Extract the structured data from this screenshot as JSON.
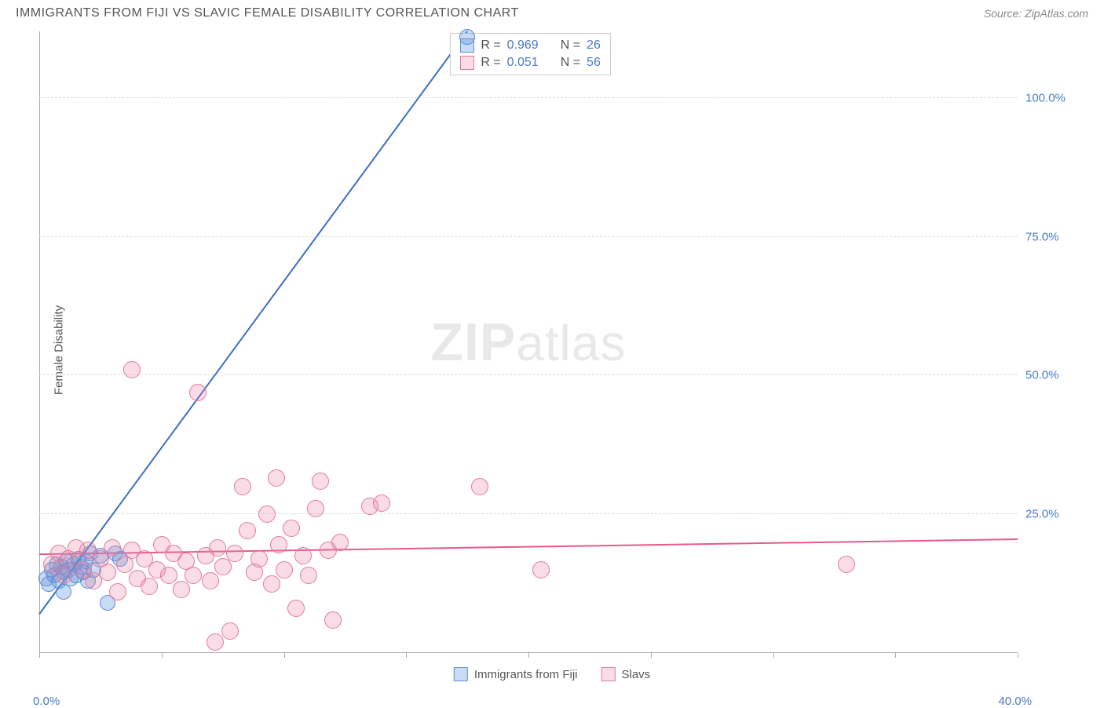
{
  "title": "IMMIGRANTS FROM FIJI VS SLAVIC FEMALE DISABILITY CORRELATION CHART",
  "source": "Source: ZipAtlas.com",
  "ylabel": "Female Disability",
  "watermark_zip": "ZIP",
  "watermark_atlas": "atlas",
  "xlim": [
    0,
    40
  ],
  "ylim": [
    0,
    112
  ],
  "x_ticks": [
    0,
    5,
    10,
    15,
    20,
    25,
    30,
    35,
    40
  ],
  "x_tick_labels": {
    "left": "0.0%",
    "right": "40.0%"
  },
  "y_gridlines": [
    25,
    50,
    75,
    100
  ],
  "y_tick_labels": [
    "25.0%",
    "50.0%",
    "75.0%",
    "100.0%"
  ],
  "colors": {
    "blue_fill": "rgba(100,150,220,0.35)",
    "blue_stroke": "#5b8fd6",
    "blue_line": "#3b6fc2",
    "pink_fill": "rgba(235,130,160,0.28)",
    "pink_stroke": "#e07a9a",
    "pink_line": "#e65a8a",
    "axis_label": "#4a7ac7",
    "text": "#555555",
    "grid": "#dddddd"
  },
  "series": [
    {
      "name": "Immigrants from Fiji",
      "color_key": "blue",
      "R": "0.969",
      "N": "26",
      "marker_radius": 10,
      "trend": {
        "x1": 0.0,
        "y1": 7.0,
        "x2": 17.5,
        "y2": 112.0
      },
      "points": [
        [
          0.3,
          13.5
        ],
        [
          0.5,
          15.0
        ],
        [
          0.6,
          14.0
        ],
        [
          0.7,
          16.0
        ],
        [
          0.8,
          13.0
        ],
        [
          0.9,
          15.5
        ],
        [
          1.0,
          14.5
        ],
        [
          1.1,
          16.5
        ],
        [
          1.2,
          15.0
        ],
        [
          1.3,
          13.5
        ],
        [
          1.4,
          16.0
        ],
        [
          1.5,
          14.0
        ],
        [
          1.6,
          17.0
        ],
        [
          1.7,
          15.5
        ],
        [
          1.8,
          14.5
        ],
        [
          1.9,
          16.5
        ],
        [
          2.0,
          13.0
        ],
        [
          2.1,
          18.0
        ],
        [
          2.2,
          15.0
        ],
        [
          2.5,
          17.5
        ],
        [
          2.8,
          9.0
        ],
        [
          3.1,
          18.0
        ],
        [
          3.3,
          17.0
        ],
        [
          1.0,
          11.0
        ],
        [
          0.4,
          12.5
        ],
        [
          17.5,
          111
        ]
      ]
    },
    {
      "name": "Slavs",
      "color_key": "pink",
      "R": "0.051",
      "N": "56",
      "marker_radius": 11,
      "trend": {
        "x1": 0.0,
        "y1": 17.8,
        "x2": 40.0,
        "y2": 20.5
      },
      "points": [
        [
          0.5,
          16.0
        ],
        [
          0.8,
          18.0
        ],
        [
          1.0,
          14.0
        ],
        [
          1.2,
          17.0
        ],
        [
          1.5,
          19.0
        ],
        [
          1.8,
          15.0
        ],
        [
          2.0,
          18.5
        ],
        [
          2.2,
          13.0
        ],
        [
          2.5,
          17.0
        ],
        [
          2.8,
          14.5
        ],
        [
          3.0,
          19.0
        ],
        [
          3.2,
          11.0
        ],
        [
          3.5,
          16.0
        ],
        [
          3.8,
          18.5
        ],
        [
          4.0,
          13.5
        ],
        [
          4.3,
          17.0
        ],
        [
          4.5,
          12.0
        ],
        [
          4.8,
          15.0
        ],
        [
          5.0,
          19.5
        ],
        [
          5.3,
          14.0
        ],
        [
          5.5,
          18.0
        ],
        [
          5.8,
          11.5
        ],
        [
          6.0,
          16.5
        ],
        [
          3.8,
          51.0
        ],
        [
          6.3,
          14.0
        ],
        [
          6.8,
          17.5
        ],
        [
          6.5,
          47.0
        ],
        [
          7.0,
          13.0
        ],
        [
          7.3,
          19.0
        ],
        [
          7.5,
          15.5
        ],
        [
          7.8,
          4.0
        ],
        [
          8.0,
          18.0
        ],
        [
          7.2,
          2.0
        ],
        [
          8.5,
          22.0
        ],
        [
          8.8,
          14.5
        ],
        [
          9.0,
          17.0
        ],
        [
          9.3,
          25.0
        ],
        [
          9.5,
          12.5
        ],
        [
          9.8,
          19.5
        ],
        [
          10.0,
          15.0
        ],
        [
          10.3,
          22.5
        ],
        [
          10.5,
          8.0
        ],
        [
          10.8,
          17.5
        ],
        [
          11.0,
          14.0
        ],
        [
          11.3,
          26.0
        ],
        [
          11.5,
          31.0
        ],
        [
          11.8,
          18.5
        ],
        [
          12.0,
          6.0
        ],
        [
          12.3,
          20.0
        ],
        [
          9.7,
          31.5
        ],
        [
          13.5,
          26.5
        ],
        [
          14.0,
          27.0
        ],
        [
          18.0,
          30.0
        ],
        [
          20.5,
          15.0
        ],
        [
          33.0,
          16.0
        ],
        [
          8.3,
          30.0
        ]
      ]
    }
  ],
  "legend_bottom": [
    {
      "label": "Immigrants from Fiji",
      "color_key": "blue"
    },
    {
      "label": "Slavs",
      "color_key": "pink"
    }
  ]
}
